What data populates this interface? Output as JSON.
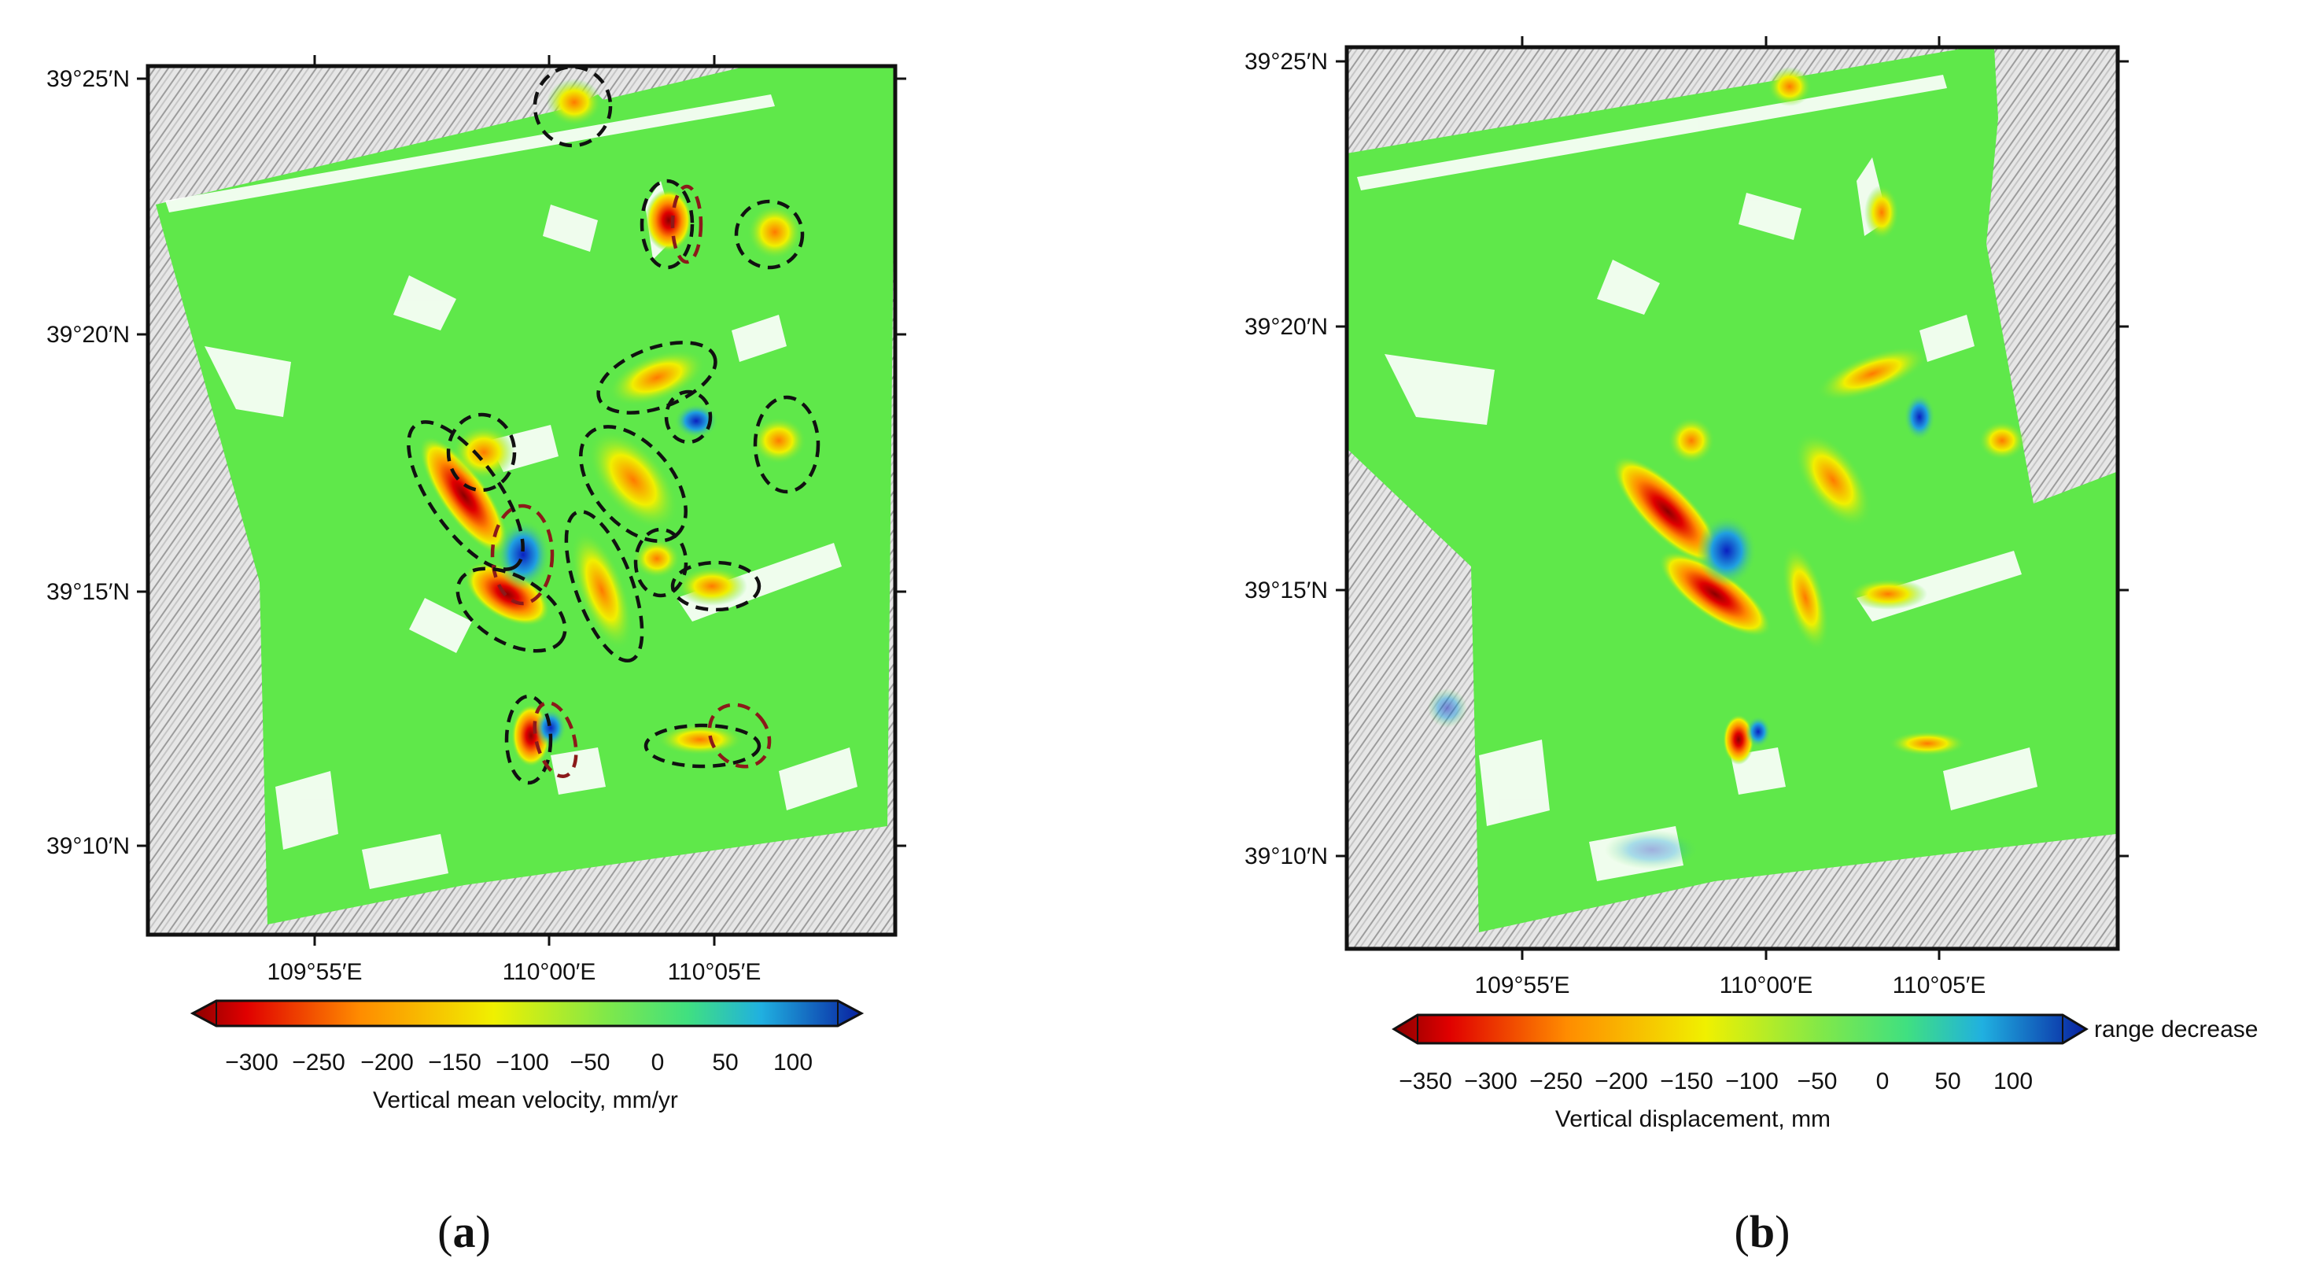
{
  "panels": [
    {
      "id": "a",
      "caption": "a",
      "lat_labels": [
        "39°25′N",
        "39°20′N",
        "39°15′N",
        "39°10′N"
      ],
      "lon_labels": [
        "109°55′E",
        "110°00′E",
        "110°05′E"
      ],
      "colorbar": {
        "ticks": [
          "−300",
          "−250",
          "−200",
          "−150",
          "−100",
          "−50",
          "0",
          "50",
          "100"
        ],
        "title": "Vertical mean velocity, mm/yr",
        "range": [
          -330,
          130
        ],
        "extra_label": ""
      }
    },
    {
      "id": "b",
      "caption": "b",
      "lat_labels": [
        "39°25′N",
        "39°20′N",
        "39°15′N",
        "39°10′N"
      ],
      "lon_labels": [
        "109°55′E",
        "110°00′E",
        "110°05′E"
      ],
      "colorbar": {
        "ticks": [
          "−350",
          "−300",
          "−250",
          "−200",
          "−150",
          "−100",
          "−50",
          "0",
          "50",
          "100"
        ],
        "title": "Vertical displacement, mm",
        "range": [
          -370,
          130
        ],
        "extra_label": "range decrease"
      }
    }
  ],
  "colors": {
    "green": "#5fe84a",
    "yellow": "#f0f000",
    "orange": "#ff8c00",
    "red": "#e00000",
    "darkred": "#8b0000",
    "blue": "#1040e0",
    "hillshade": "#d9d9d9"
  }
}
